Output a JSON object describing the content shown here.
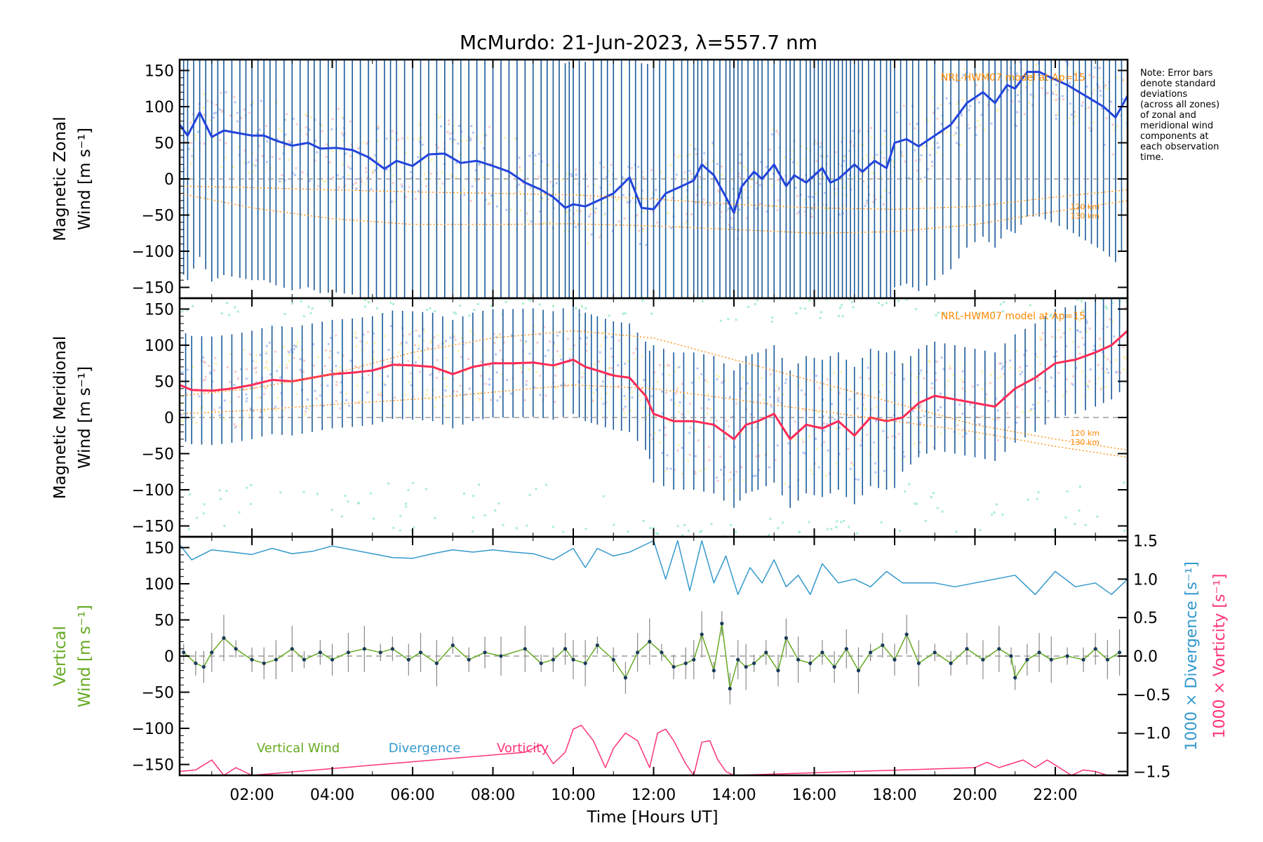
{
  "title": "McMurdo: 21-Jun-2023, λ=557.7 nm",
  "note": [
    "Note: Error bars",
    "denote standard",
    "deviations",
    "(across all zones)",
    "of zonal and",
    "meridional wind",
    "components at",
    "each observation",
    "time."
  ],
  "model_label": "NRL-HWM07 model at Ap=15",
  "altitudes": [
    "120 km",
    "130 km"
  ],
  "xlabel": "Time [Hours UT]",
  "colors": {
    "zonal": "#2244dd",
    "meridional": "#ff2a55",
    "vertical": "#66aa22",
    "divergence": "#3399cc",
    "vorticity": "#ff3377",
    "model": "#ff8800",
    "errbar": "#1a5a9a",
    "scatter_blue": "#7799ee",
    "scatter_red": "#f2a0a0",
    "scatter_cyan": "#66e0aa",
    "scatter_yellow": "#f5e870"
  },
  "chart_data": [
    {
      "type": "line",
      "panel": "zonal",
      "ylabel_lines": [
        "Magnetic Zonal",
        "Wind [m s⁻¹]"
      ],
      "xlim": [
        0.2,
        23.8
      ],
      "ylim": [
        -165,
        165
      ],
      "xticks": [
        2,
        4,
        6,
        8,
        10,
        12,
        14,
        16,
        18,
        20,
        22
      ],
      "xtick_labels": [
        "02:00",
        "04:00",
        "06:00",
        "08:00",
        "10:00",
        "12:00",
        "14:00",
        "16:00",
        "18:00",
        "20:00",
        "22:00"
      ],
      "yticks": [
        -150,
        -100,
        -50,
        0,
        50,
        100,
        150
      ],
      "ytick_labels": [
        "−150",
        "−100",
        "−50",
        "0",
        "50",
        "100",
        "150"
      ],
      "series": [
        {
          "name": "Magnetic Zonal Wind",
          "x": [
            0.2,
            0.4,
            0.7,
            1.0,
            1.3,
            1.7,
            2.0,
            2.3,
            2.6,
            3.0,
            3.4,
            3.7,
            4.1,
            4.5,
            4.9,
            5.3,
            5.6,
            6.0,
            6.4,
            6.8,
            7.2,
            7.6,
            8.0,
            8.4,
            8.8,
            9.2,
            9.5,
            9.8,
            10.0,
            10.3,
            10.7,
            11.0,
            11.4,
            11.7,
            12.0,
            12.3,
            12.7,
            13.0,
            13.2,
            13.5,
            13.8,
            14.0,
            14.2,
            14.5,
            14.7,
            15.0,
            15.3,
            15.5,
            15.8,
            16.0,
            16.2,
            16.4,
            16.6,
            16.8,
            17.0,
            17.2,
            17.5,
            17.8,
            18.0,
            18.3,
            18.6,
            19.0,
            19.4,
            19.8,
            20.2,
            20.5,
            20.8,
            21.0,
            21.3,
            21.6,
            21.9,
            22.3,
            22.6,
            22.9,
            23.2,
            23.5,
            23.8
          ],
          "y": [
            75,
            60,
            92,
            58,
            67,
            63,
            60,
            60,
            53,
            46,
            50,
            42,
            43,
            40,
            30,
            14,
            25,
            18,
            34,
            35,
            22,
            25,
            18,
            10,
            -5,
            -15,
            -25,
            -40,
            -35,
            -38,
            -28,
            -20,
            2,
            -40,
            -42,
            -20,
            -10,
            -2,
            20,
            5,
            -25,
            -47,
            -10,
            10,
            0,
            20,
            -10,
            5,
            -5,
            5,
            15,
            -5,
            0,
            10,
            20,
            10,
            25,
            15,
            50,
            55,
            45,
            60,
            75,
            105,
            120,
            105,
            130,
            125,
            148,
            148,
            140,
            130,
            120,
            110,
            100,
            85,
            115
          ]
        },
        {
          "name": "NRL-HWM07 120 km",
          "x": [
            0.2,
            2,
            4,
            6,
            8,
            10,
            12,
            14,
            16,
            18,
            20,
            22,
            23.8
          ],
          "y": [
            -10,
            -12,
            -15,
            -18,
            -20,
            -22,
            -28,
            -35,
            -40,
            -42,
            -38,
            -25,
            -15
          ]
        },
        {
          "name": "NRL-HWM07 130 km",
          "x": [
            0.2,
            2,
            4,
            6,
            8,
            10,
            12,
            14,
            16,
            18,
            20,
            22,
            23.8
          ],
          "y": [
            -20,
            -40,
            -55,
            -63,
            -63,
            -62,
            -65,
            -70,
            -75,
            -73,
            -63,
            -45,
            -30
          ]
        }
      ]
    },
    {
      "type": "line",
      "panel": "meridional",
      "ylabel_lines": [
        "Magnetic Meridional",
        "Wind [m s⁻¹]"
      ],
      "xlim": [
        0.2,
        23.8
      ],
      "ylim": [
        -165,
        165
      ],
      "yticks": [
        -150,
        -100,
        -50,
        0,
        50,
        100,
        150
      ],
      "ytick_labels": [
        "−150",
        "−100",
        "−50",
        "0",
        "50",
        "100",
        "150"
      ],
      "series": [
        {
          "name": "Magnetic Meridional Wind",
          "x": [
            0.2,
            0.5,
            1.0,
            1.5,
            2.0,
            2.5,
            3.0,
            3.5,
            4.0,
            4.5,
            5.0,
            5.5,
            6.0,
            6.5,
            7.0,
            7.5,
            8.0,
            8.5,
            9.0,
            9.5,
            10.0,
            10.3,
            10.6,
            11.0,
            11.4,
            11.8,
            12.0,
            12.5,
            13.0,
            13.5,
            14.0,
            14.3,
            14.6,
            15.0,
            15.4,
            15.8,
            16.2,
            16.6,
            17.0,
            17.4,
            17.8,
            18.2,
            18.6,
            19.0,
            19.5,
            20.0,
            20.5,
            21.0,
            21.5,
            22.0,
            22.5,
            23.0,
            23.4,
            23.8
          ],
          "y": [
            45,
            38,
            37,
            40,
            45,
            52,
            50,
            55,
            60,
            62,
            65,
            73,
            72,
            70,
            60,
            70,
            75,
            75,
            76,
            72,
            80,
            70,
            65,
            58,
            55,
            30,
            5,
            -5,
            -5,
            -10,
            -30,
            -10,
            -5,
            5,
            -30,
            -10,
            -15,
            -5,
            -25,
            0,
            -5,
            0,
            20,
            30,
            25,
            20,
            15,
            40,
            55,
            75,
            80,
            90,
            100,
            120
          ]
        },
        {
          "name": "NRL-HWM07 120 km",
          "x": [
            0.2,
            2,
            4,
            6,
            8,
            10,
            12,
            14,
            16,
            18,
            20,
            22,
            23.8
          ],
          "y": [
            30,
            40,
            60,
            90,
            110,
            120,
            110,
            80,
            50,
            20,
            -10,
            -30,
            -45
          ]
        },
        {
          "name": "NRL-HWM07 130 km",
          "x": [
            0.2,
            2,
            4,
            6,
            8,
            10,
            12,
            14,
            16,
            18,
            20,
            22,
            23.8
          ],
          "y": [
            5,
            10,
            18,
            25,
            35,
            45,
            40,
            25,
            10,
            -5,
            -20,
            -40,
            -55
          ]
        }
      ]
    },
    {
      "type": "line",
      "panel": "vertical",
      "ylabel_lines": [
        "Vertical",
        "Wind [m s⁻¹]"
      ],
      "right_ylabels": [
        "1000 × Divergence [s⁻¹]",
        "1000 × Vorticity [s⁻¹]"
      ],
      "xlim": [
        0.2,
        23.8
      ],
      "ylim": [
        -165,
        165
      ],
      "yticks": [
        -150,
        -100,
        -50,
        0,
        50,
        100,
        150
      ],
      "ytick_labels": [
        "−150",
        "−100",
        "−50",
        "0",
        "50",
        "100",
        "150"
      ],
      "y2lim": [
        -1.55,
        1.55
      ],
      "y2ticks": [
        -1.5,
        -1.0,
        -0.5,
        0.0,
        0.5,
        1.0,
        1.5
      ],
      "y2tick_labels": [
        "−1.5",
        "−1.0",
        "−0.5",
        "0.0",
        "0.5",
        "1.0",
        "1.5"
      ],
      "legend": [
        "Vertical Wind",
        "Divergence",
        "Vorticity"
      ],
      "series": [
        {
          "name": "Vertical Wind",
          "axis": "left",
          "x": [
            0.3,
            0.6,
            0.8,
            1.0,
            1.3,
            1.6,
            2.0,
            2.3,
            2.6,
            3.0,
            3.3,
            3.7,
            4.0,
            4.4,
            4.8,
            5.2,
            5.5,
            5.9,
            6.2,
            6.6,
            7.0,
            7.4,
            7.8,
            8.2,
            8.8,
            9.2,
            9.5,
            9.8,
            10.0,
            10.3,
            10.6,
            11.0,
            11.3,
            11.6,
            11.9,
            12.2,
            12.5,
            12.8,
            13.0,
            13.2,
            13.5,
            13.7,
            13.9,
            14.1,
            14.3,
            14.5,
            14.8,
            15.1,
            15.3,
            15.6,
            15.9,
            16.2,
            16.5,
            16.8,
            17.1,
            17.4,
            17.7,
            18.0,
            18.3,
            18.6,
            19.0,
            19.4,
            19.8,
            20.2,
            20.6,
            20.9,
            21.0,
            21.3,
            21.6,
            21.9,
            22.3,
            22.7,
            23.0,
            23.3,
            23.6
          ],
          "y": [
            5,
            -10,
            -15,
            5,
            25,
            10,
            -5,
            -10,
            -5,
            10,
            -5,
            5,
            -5,
            5,
            10,
            5,
            10,
            -5,
            5,
            -10,
            15,
            -5,
            5,
            0,
            10,
            -10,
            -5,
            10,
            -5,
            -10,
            15,
            -5,
            -30,
            5,
            20,
            5,
            -15,
            -10,
            -5,
            30,
            -20,
            45,
            -45,
            -5,
            -15,
            -10,
            5,
            -20,
            25,
            -5,
            -10,
            5,
            -15,
            10,
            -20,
            5,
            15,
            -5,
            30,
            -10,
            5,
            -10,
            10,
            -5,
            10,
            0,
            -30,
            -5,
            5,
            -5,
            0,
            -5,
            10,
            -5,
            5
          ]
        },
        {
          "name": "Divergence",
          "axis": "right",
          "x": [
            0.2,
            0.5,
            1.0,
            1.5,
            2.0,
            2.5,
            3.0,
            3.5,
            4.0,
            4.5,
            5.0,
            5.5,
            6.0,
            6.5,
            7.0,
            7.5,
            8.0,
            8.5,
            9.0,
            9.5,
            10.0,
            10.3,
            10.6,
            11.0,
            11.4,
            11.8,
            12.0,
            12.3,
            12.6,
            12.9,
            13.2,
            13.5,
            13.8,
            14.1,
            14.4,
            14.7,
            15.0,
            15.3,
            15.6,
            15.9,
            16.2,
            16.6,
            17.0,
            17.4,
            17.8,
            18.2,
            18.6,
            19.0,
            19.5,
            20.0,
            20.5,
            21.0,
            21.5,
            22.0,
            22.5,
            23.0,
            23.4,
            23.8
          ],
          "y": [
            1.45,
            1.25,
            1.38,
            1.35,
            1.32,
            1.4,
            1.33,
            1.36,
            1.43,
            1.38,
            1.33,
            1.28,
            1.27,
            1.33,
            1.38,
            1.35,
            1.38,
            1.35,
            1.33,
            1.25,
            1.4,
            1.15,
            1.4,
            1.3,
            1.35,
            1.45,
            1.5,
            1.0,
            1.5,
            0.85,
            1.5,
            0.95,
            1.3,
            0.8,
            1.15,
            0.95,
            1.25,
            0.9,
            1.05,
            0.8,
            1.2,
            0.95,
            1.0,
            0.9,
            1.1,
            0.95,
            0.95,
            0.95,
            0.9,
            0.95,
            1.0,
            1.05,
            0.8,
            1.1,
            0.9,
            0.95,
            0.8,
            1.0
          ]
        },
        {
          "name": "Vorticity",
          "axis": "right",
          "x": [
            0.2,
            0.6,
            1.0,
            1.3,
            1.6,
            2.0,
            8.8,
            9.2,
            9.5,
            9.8,
            10.0,
            10.2,
            10.5,
            10.8,
            11.0,
            11.3,
            11.6,
            11.9,
            12.1,
            12.3,
            12.5,
            12.8,
            13.0,
            13.2,
            13.4,
            13.6,
            13.8,
            14.0,
            20.0,
            20.3,
            20.6,
            20.9,
            21.2,
            21.5,
            21.8,
            22.1,
            22.4,
            22.7,
            23.0,
            23.3
          ],
          "y": [
            -1.5,
            -1.48,
            -1.35,
            -1.55,
            -1.45,
            -1.55,
            -1.25,
            -1.15,
            -1.4,
            -1.25,
            -0.95,
            -0.9,
            -1.1,
            -1.45,
            -1.2,
            -1.0,
            -1.1,
            -1.45,
            -1.0,
            -0.95,
            -1.1,
            -1.4,
            -1.55,
            -1.12,
            -1.1,
            -1.35,
            -1.5,
            -1.55,
            -1.45,
            -1.38,
            -1.45,
            -1.4,
            -1.35,
            -1.45,
            -1.35,
            -1.45,
            -1.55,
            -1.48,
            -1.5,
            -1.55
          ]
        }
      ]
    }
  ]
}
